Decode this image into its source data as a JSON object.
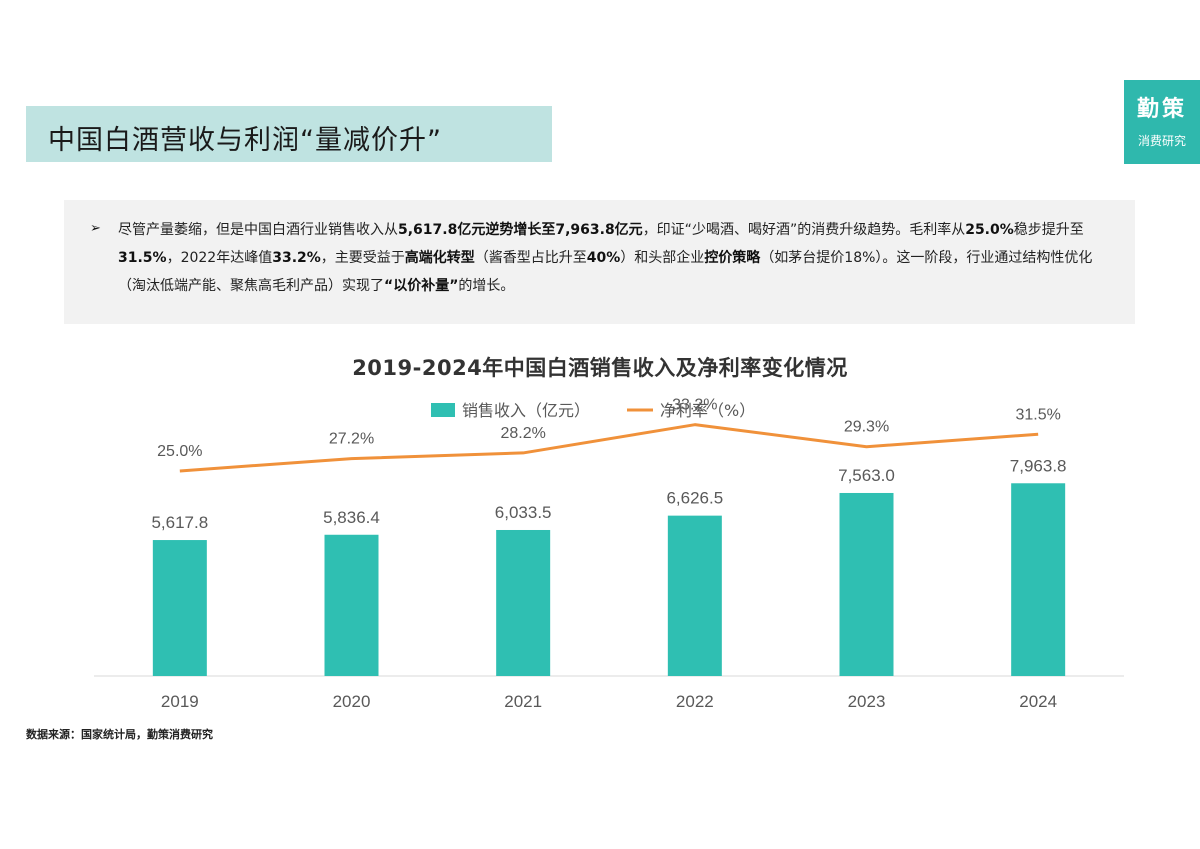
{
  "header": {
    "title": "中国白酒营收与利润“量减价升”"
  },
  "logo": {
    "main": "勤策",
    "sub": "消费研究"
  },
  "summary": {
    "bullet": "➢",
    "t1": "尽管产量萎缩，但是中国白酒行业销售收入从",
    "b1": "5,617.8亿元逆势增长至7,963.8亿元",
    "t2": "，印证“少喝酒、喝好酒”的消费升级趋势。毛利率从",
    "b2": "25.0%",
    "t3": "稳步提升至",
    "b3": "31.5%",
    "t4": "，2022年达峰值",
    "b4": "33.2%",
    "t5": "，主要受益于",
    "b5": "高端化转型",
    "t6": "（酱香型占比升至",
    "b6": "40%",
    "t7": "）和头部企业",
    "b7": "控价策略",
    "t8": "（如茅台提价18%）。这一阶段，行业通过结构性优化（淘汰低端产能、聚焦高毛利产品）实现了",
    "b8": "“以价补量”",
    "t9": "的增长。"
  },
  "chart_data": {
    "type": "bar",
    "title": "2019-2024年中国白酒销售收入及净利率变化情况",
    "categories": [
      "2019",
      "2020",
      "2021",
      "2022",
      "2023",
      "2024"
    ],
    "series": [
      {
        "name": "销售收入（亿元）",
        "type": "bar",
        "values": [
          5617.8,
          5836.4,
          6033.5,
          6626.5,
          7563.0,
          7963.8
        ],
        "labels": [
          "5,617.8",
          "5,836.4",
          "6,033.5",
          "6,626.5",
          "7,563.0",
          "7,963.8"
        ],
        "color": "#2fbfb2"
      },
      {
        "name": "净利率（%）",
        "type": "line",
        "values": [
          25.0,
          27.2,
          28.2,
          33.2,
          29.3,
          31.5
        ],
        "labels": [
          "25.0%",
          "27.2%",
          "28.2%",
          "33.2%",
          "29.3%",
          "31.5%"
        ],
        "color": "#f0913a"
      }
    ],
    "legend": "top-center",
    "grid": false,
    "axis_color": "#d9d9d9"
  },
  "source": "数据来源：国家统计局，勤策消费研究"
}
